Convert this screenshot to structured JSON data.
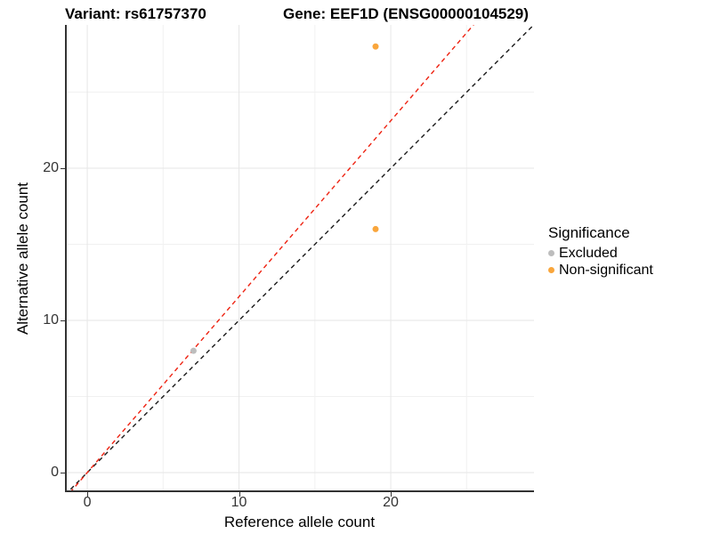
{
  "titles": {
    "variant": "Variant: rs61757370",
    "gene": "Gene: EEF1D (ENSG00000104529)"
  },
  "axes": {
    "x_label": "Reference allele count",
    "y_label": "Alternative allele count"
  },
  "legend": {
    "title": "Significance",
    "items": [
      {
        "label": "Excluded",
        "color": "#bdbdbd"
      },
      {
        "label": "Non-significant",
        "color": "#f9a63c"
      }
    ]
  },
  "chart_data": {
    "type": "scatter",
    "title": "Variant: rs61757370 / Gene: EEF1D (ENSG00000104529)",
    "xlabel": "Reference allele count",
    "ylabel": "Alternative allele count",
    "xlim": [
      -1.47,
      29.44
    ],
    "ylim": [
      -1.29,
      29.42
    ],
    "x_major_ticks": [
      0,
      10,
      20
    ],
    "y_major_ticks": [
      0,
      10,
      20
    ],
    "x_minor_gridlines": [
      5,
      15,
      25
    ],
    "y_minor_gridlines": [
      5,
      15,
      25
    ],
    "grid": true,
    "legend_position": "right",
    "series": [
      {
        "name": "Excluded",
        "color": "#bdbdbd",
        "points": [
          {
            "x": 7,
            "y": 8
          }
        ]
      },
      {
        "name": "Non-significant",
        "color": "#f9a63c",
        "points": [
          {
            "x": 19,
            "y": 16
          },
          {
            "x": 19,
            "y": 28
          }
        ]
      }
    ],
    "lines": [
      {
        "name": "identity-line",
        "slope": 1,
        "intercept": 0,
        "style": "dashed",
        "color": "#1a1a1a"
      },
      {
        "name": "expected-ratio-line",
        "slope": 1.156,
        "intercept": 0,
        "style": "dashed",
        "color": "#ee2211"
      }
    ],
    "style": {
      "major_grid_color": "#e6e6e6",
      "minor_grid_color": "#f1f1f1",
      "axis_line_color": "#333333",
      "point_radius": 3.5
    }
  }
}
